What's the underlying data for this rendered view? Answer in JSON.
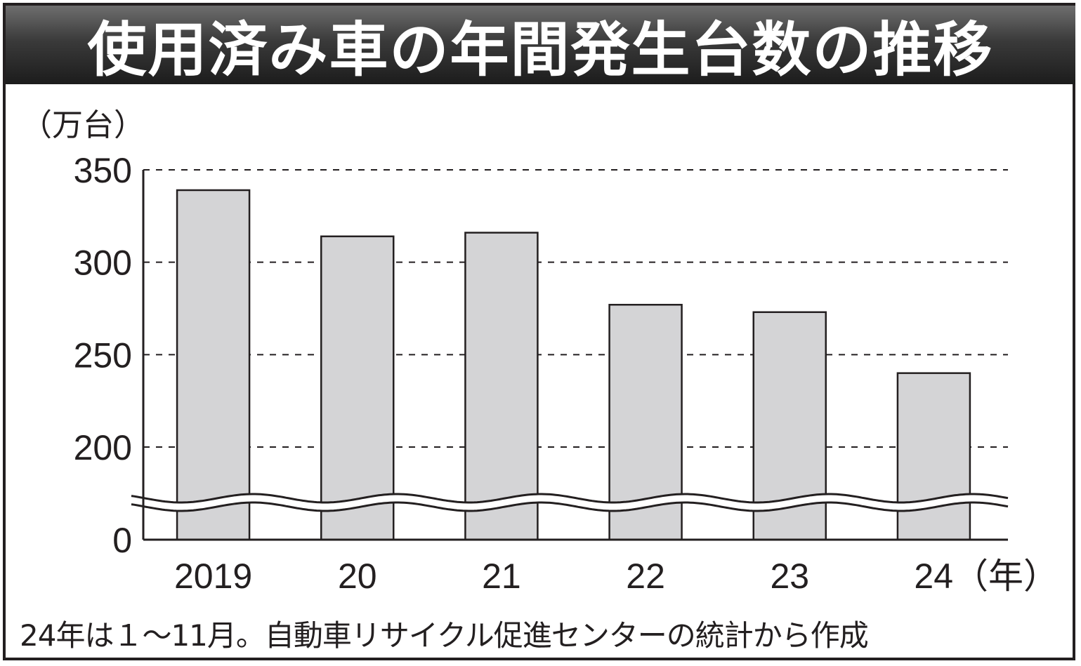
{
  "title": "使用済み車の年間発生台数の推移",
  "unit_label": "（万台）",
  "note": "24年は１～11月。自動車リサイクル促進センターの統計から作成",
  "colors": {
    "bar_fill": "#d4d4d6",
    "stroke": "#231f20"
  },
  "chart_data": {
    "type": "bar",
    "categories": [
      "2019",
      "20",
      "21",
      "22",
      "23",
      "24（年）"
    ],
    "values": [
      339,
      314,
      316,
      277,
      273,
      240
    ],
    "ylabel": "（万台）",
    "yticks": [
      0,
      200,
      250,
      300,
      350
    ],
    "ylim": [
      0,
      350
    ],
    "axis_break": "between 0 and 200",
    "grid": "dashed horizontal at 200, 250, 300, 350"
  }
}
